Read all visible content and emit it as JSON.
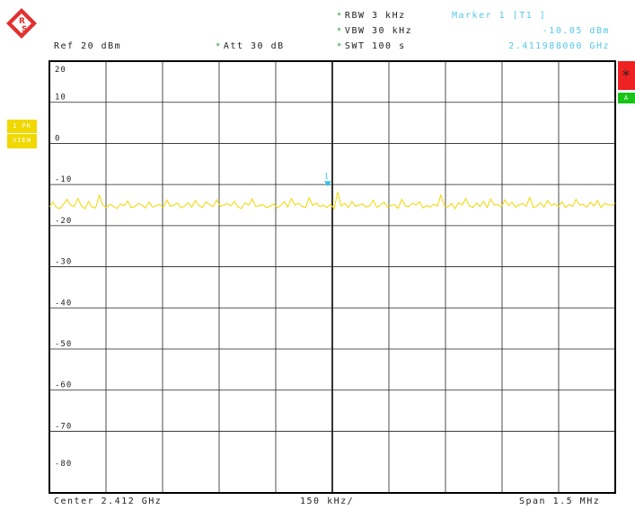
{
  "header": {
    "ref": "Ref  20 dBm",
    "att": "Att  30 dB",
    "rbw": "RBW  3 kHz",
    "vbw": "VBW  30 kHz",
    "swt": "SWT  100 s",
    "marker_title": "Marker 1 [T1 ]",
    "marker_level": "-10.05 dBm",
    "marker_freq": "2.411988000 GHz",
    "star_symbol": "*"
  },
  "side": {
    "tab_star": "*",
    "tab_a": "A",
    "trace_label_1": "1 PK",
    "trace_label_2": "VIEW"
  },
  "footer": {
    "center": "Center 2.412 GHz",
    "span_div": "150 kHz/",
    "span": "Span 1.5 MHz"
  },
  "colors": {
    "trace": "#f0d800",
    "marker": "#2ec4e6",
    "grid": "#000000"
  },
  "chart_data": {
    "type": "line",
    "title": "",
    "xlabel": "",
    "ylabel": "",
    "x_center_ghz": 2.412,
    "x_span_mhz": 1.5,
    "xlim_ghz": [
      2.41125,
      2.41275
    ],
    "ylim": [
      -85,
      20
    ],
    "y_ticks": [
      20,
      10,
      0,
      -10,
      -20,
      -30,
      -40,
      -50,
      -60,
      -70,
      -80
    ],
    "y_tick_labels": [
      "20",
      "10",
      "0",
      "-10",
      "-20",
      "-30",
      "-40",
      "-50",
      "-60",
      "-70",
      "-80"
    ],
    "grid": true,
    "series": [
      {
        "x_ghz_start": 2.41125,
        "x_ghz_end": 2.41275,
        "points": 160,
        "values": [
          -15.4,
          -14.3,
          -15.6,
          -15.8,
          -14.8,
          -13.6,
          -15.1,
          -15.3,
          -13.4,
          -15.2,
          -15.9,
          -14.1,
          -15.5,
          -15.7,
          -12.6,
          -15.0,
          -15.6,
          -14.8,
          -15.3,
          -15.8,
          -14.7,
          -15.2,
          -14.0,
          -15.6,
          -15.4,
          -14.6,
          -15.0,
          -15.7,
          -14.3,
          -15.5,
          -15.1,
          -14.9,
          -15.6,
          -13.8,
          -15.3,
          -15.0,
          -14.5,
          -15.7,
          -15.2,
          -14.4,
          -15.5,
          -13.9,
          -15.1,
          -15.6,
          -14.2,
          -14.9,
          -15.4,
          -13.7,
          -15.3,
          -15.0,
          -14.6,
          -15.2,
          -14.1,
          -15.5,
          -15.8,
          -14.4,
          -15.0,
          -13.5,
          -15.4,
          -15.1,
          -14.9,
          -15.6,
          -15.3,
          -14.7,
          -15.7,
          -15.1,
          -14.2,
          -15.5,
          -13.4,
          -15.0,
          -14.6,
          -15.3,
          -15.6,
          -13.2,
          -15.1,
          -14.5,
          -15.4,
          -15.0,
          -15.6,
          -14.8,
          -15.9,
          -11.8,
          -15.2,
          -14.6,
          -15.6,
          -14.1,
          -15.3,
          -15.0,
          -14.7,
          -15.5,
          -15.2,
          -13.8,
          -15.6,
          -15.0,
          -14.3,
          -15.5,
          -15.1,
          -14.9,
          -15.8,
          -13.6,
          -15.2,
          -15.4,
          -14.5,
          -15.0,
          -14.2,
          -15.7,
          -15.1,
          -15.5,
          -14.8,
          -15.3,
          -12.6,
          -15.1,
          -15.5,
          -14.6,
          -15.9,
          -14.4,
          -15.0,
          -13.4,
          -15.2,
          -15.6,
          -14.5,
          -15.3,
          -14.1,
          -15.6,
          -13.5,
          -15.0,
          -14.9,
          -15.4,
          -13.7,
          -15.1,
          -14.3,
          -15.5,
          -15.0,
          -14.6,
          -15.3,
          -13.1,
          -15.6,
          -15.2,
          -14.4,
          -15.5,
          -13.9,
          -15.1,
          -14.7,
          -15.4,
          -14.2,
          -15.6,
          -14.9,
          -15.3,
          -13.6,
          -15.0,
          -14.8,
          -15.5,
          -14.3,
          -15.2,
          -13.9,
          -15.6,
          -14.6,
          -14.9,
          -15.1,
          -14.5
        ]
      }
    ],
    "marker": {
      "label": "1",
      "x_ghz": 2.411988,
      "y": -10.05
    }
  }
}
